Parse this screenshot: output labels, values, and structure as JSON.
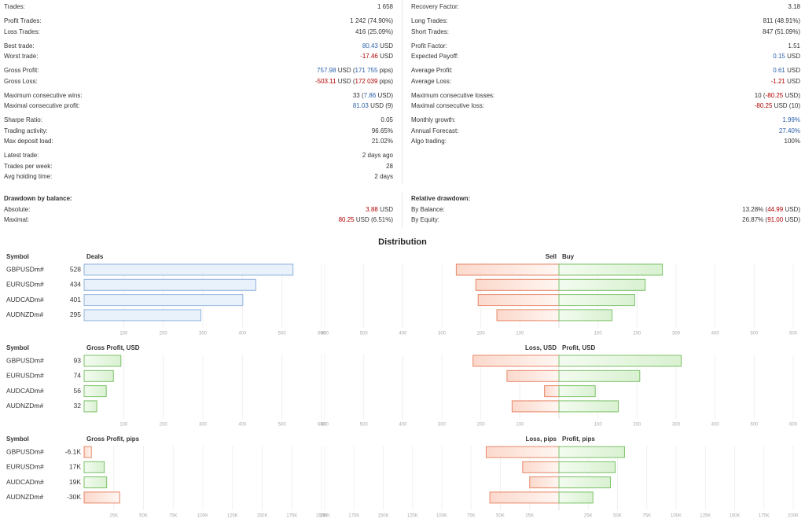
{
  "stats": {
    "left": [
      [
        {
          "label": "Trades:",
          "value": [
            [
              "1 658"
            ]
          ]
        }
      ],
      [
        {
          "label": "Profit Trades:",
          "value": [
            [
              "1 242 (74.90%)"
            ]
          ]
        },
        {
          "label": "Loss Trades:",
          "value": [
            [
              "416 (25.09%)"
            ]
          ]
        }
      ],
      [
        {
          "label": "Best trade:",
          "value": [
            [
              "80.43",
              "blue"
            ],
            [
              " USD"
            ]
          ]
        },
        {
          "label": "Worst trade:",
          "value": [
            [
              "-17.46",
              "red"
            ],
            [
              " USD"
            ]
          ]
        }
      ],
      [
        {
          "label": "Gross Profit:",
          "value": [
            [
              "757.98",
              "blue"
            ],
            [
              " USD ("
            ],
            [
              "171 755",
              "blue"
            ],
            [
              " pips)"
            ]
          ]
        },
        {
          "label": "Gross Loss:",
          "value": [
            [
              "-503.11",
              "red"
            ],
            [
              " USD ("
            ],
            [
              "172 039",
              "red"
            ],
            [
              " pips)"
            ]
          ]
        }
      ],
      [
        {
          "label": "Maximum consecutive wins:",
          "value": [
            [
              "33 ("
            ],
            [
              "7.86",
              "blue"
            ],
            [
              " USD)"
            ]
          ]
        },
        {
          "label": "Maximal consecutive profit:",
          "value": [
            [
              "81.03",
              "blue"
            ],
            [
              " USD (9)"
            ]
          ]
        }
      ],
      [
        {
          "label": "Sharpe Ratio:",
          "value": [
            [
              "0.05"
            ]
          ]
        },
        {
          "label": "Trading activity:",
          "value": [
            [
              "96.65%"
            ]
          ]
        },
        {
          "label": "Max deposit load:",
          "value": [
            [
              "21.02%"
            ]
          ]
        }
      ],
      [
        {
          "label": "Latest trade:",
          "value": [
            [
              "2 days ago"
            ]
          ]
        },
        {
          "label": "Trades per week:",
          "value": [
            [
              "28"
            ]
          ]
        },
        {
          "label": "Avg holding time:",
          "value": [
            [
              "2 days"
            ]
          ]
        }
      ]
    ],
    "right": [
      [
        {
          "label": "Recovery Factor:",
          "value": [
            [
              "3.18"
            ]
          ]
        }
      ],
      [
        {
          "label": "Long Trades:",
          "value": [
            [
              "811 (48.91%)"
            ]
          ]
        },
        {
          "label": "Short Trades:",
          "value": [
            [
              "847 (51.09%)"
            ]
          ]
        }
      ],
      [
        {
          "label": "Profit Factor:",
          "value": [
            [
              "1.51"
            ]
          ]
        },
        {
          "label": "Expected Payoff:",
          "value": [
            [
              "0.15",
              "blue"
            ],
            [
              " USD"
            ]
          ]
        }
      ],
      [
        {
          "label": "Average Profit:",
          "value": [
            [
              "0.61",
              "blue"
            ],
            [
              " USD"
            ]
          ]
        },
        {
          "label": "Average Loss:",
          "value": [
            [
              "-1.21",
              "red"
            ],
            [
              " USD"
            ]
          ]
        }
      ],
      [
        {
          "label": "Maximum consecutive losses:",
          "value": [
            [
              "10 ("
            ],
            [
              "-80.25",
              "red"
            ],
            [
              " USD)"
            ]
          ]
        },
        {
          "label": "Maximal consecutive loss:",
          "value": [
            [
              "-80.25",
              "red"
            ],
            [
              " USD (10)"
            ]
          ]
        }
      ],
      [
        {
          "label": "Monthly growth:",
          "value": [
            [
              "1.99%",
              "blue"
            ]
          ]
        },
        {
          "label": "Annual Forecast:",
          "value": [
            [
              "27.40%",
              "blue"
            ]
          ]
        },
        {
          "label": "Algo trading:",
          "value": [
            [
              "100%"
            ]
          ]
        }
      ]
    ]
  },
  "drawdown": {
    "left": {
      "title": "Drawdown by balance:",
      "rows": [
        {
          "label": "Absolute:",
          "value": [
            [
              "3.88",
              "red"
            ],
            [
              " USD"
            ]
          ]
        },
        {
          "label": "Maximal:",
          "value": [
            [
              "80.25",
              "red"
            ],
            [
              " USD (6.51%)"
            ]
          ]
        }
      ]
    },
    "right": {
      "title": "Relative drawdown:",
      "rows": [
        {
          "label": "By Balance:",
          "value": [
            [
              "13.28% ("
            ],
            [
              "44.99",
              "red"
            ],
            [
              " USD)"
            ]
          ]
        },
        {
          "label": "By Equity:",
          "value": [
            [
              "26.87% ("
            ],
            [
              "91.00",
              "red"
            ],
            [
              " USD)"
            ]
          ]
        }
      ]
    }
  },
  "distribution": {
    "title": "Distribution",
    "charts": [
      {
        "symbol_header": "Symbol",
        "total_title": "Deals",
        "left_title": "Sell",
        "right_title": "Buy",
        "total_color": "blue",
        "symbols": [
          "GBPUSDm#",
          "EURUSDm#",
          "AUDCADm#",
          "AUDNZDm#"
        ],
        "totals": [
          528,
          434,
          401,
          295
        ],
        "left_values": [
          263,
          213,
          207,
          159
        ],
        "right_values": [
          265,
          221,
          194,
          136
        ],
        "lim": [
          0,
          600
        ],
        "ticks": [
          100,
          200,
          300,
          400,
          500,
          600
        ]
      },
      {
        "symbol_header": "Symbol",
        "total_title": "Gross Profit, USD",
        "left_title": "Loss, USD",
        "right_title": "Profit, USD",
        "total_color": "sign",
        "symbols": [
          "GBPUSDm#",
          "EURUSDm#",
          "AUDCADm#",
          "AUDNZDm#"
        ],
        "totals": [
          93,
          74,
          56,
          32
        ],
        "left_values": [
          220,
          133,
          37,
          120
        ],
        "right_values": [
          313,
          207,
          93,
          152
        ],
        "lim": [
          0,
          600
        ],
        "ticks": [
          100,
          200,
          300,
          400,
          500,
          600
        ]
      },
      {
        "symbol_header": "Symbol",
        "total_title": "Gross Profit, pips",
        "left_title": "Loss, pips",
        "right_title": "Profit, pips",
        "total_color": "sign",
        "symbols": [
          "GBPUSDm#",
          "EURUSDm#",
          "AUDCADm#",
          "AUDNZDm#"
        ],
        "totals": [
          -6100,
          17000,
          19000,
          -30000
        ],
        "value_labels": [
          "-6.1K",
          "17K",
          "19K",
          "-30K"
        ],
        "left_values": [
          62100,
          31000,
          25000,
          59000
        ],
        "right_values": [
          56000,
          48000,
          44000,
          29000
        ],
        "lim": [
          0,
          200000
        ],
        "ticks": [
          {
            "value": 25000,
            "label": "25K"
          },
          {
            "value": 50000,
            "label": "50K"
          },
          {
            "value": 75000,
            "label": "75K"
          },
          {
            "value": 100000,
            "label": "100K"
          },
          {
            "value": 125000,
            "label": "125K"
          },
          {
            "value": 150000,
            "label": "150K"
          },
          {
            "value": 175000,
            "label": "175K"
          },
          {
            "value": 200000,
            "label": "200K"
          }
        ]
      }
    ]
  }
}
